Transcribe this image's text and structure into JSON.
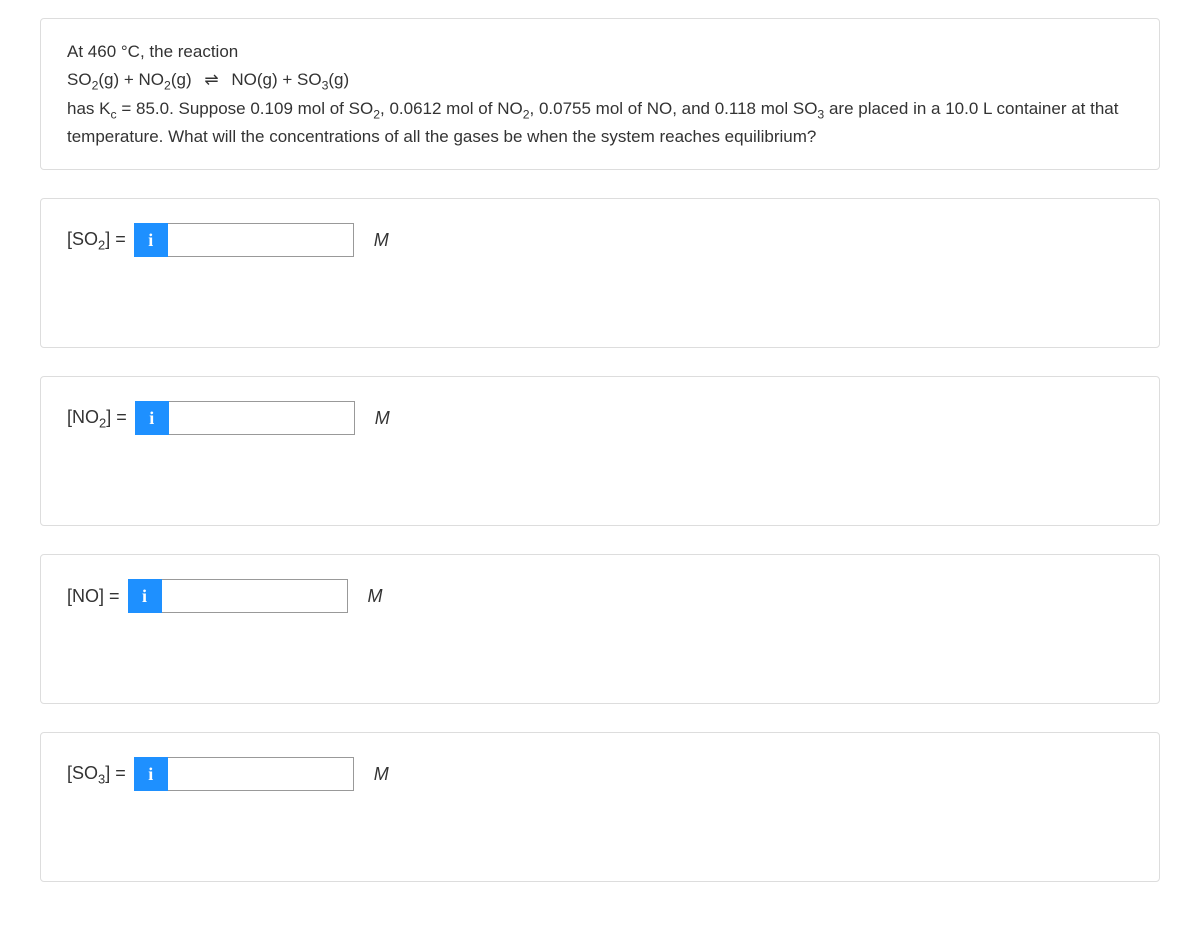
{
  "question": {
    "line1_pre": "At 460 ",
    "degC": "°C",
    "line1_post": ", the reaction",
    "eq_lhs_html": "SO<sub>2</sub>(g) + NO<sub>2</sub>(g)",
    "eq_rhs_html": "NO(g) + SO<sub>3</sub>(g)",
    "arrow": "⇌",
    "line3_html": "has K<sub>c</sub> = 85.0. Suppose 0.109 mol of SO<sub>2</sub>, 0.0612 mol of NO<sub>2</sub>, 0.0755 mol of NO, and 0.118 mol SO<sub>3</sub> are placed in a 10.0 L container at that temperature. What will the concentrations of all the gases be when the system reaches equilibrium?"
  },
  "answers": [
    {
      "label_html": "[SO<sub>2</sub>] =",
      "unit": "M"
    },
    {
      "label_html": "[NO<sub>2</sub>] =",
      "unit": "M"
    },
    {
      "label_html": "[NO] =",
      "unit": "M"
    },
    {
      "label_html": "[SO<sub>3</sub>] =",
      "unit": "M"
    }
  ],
  "info_icon_label": "i",
  "colors": {
    "border": "#dddddd",
    "info_bg": "#1e90ff",
    "text": "#333333"
  }
}
